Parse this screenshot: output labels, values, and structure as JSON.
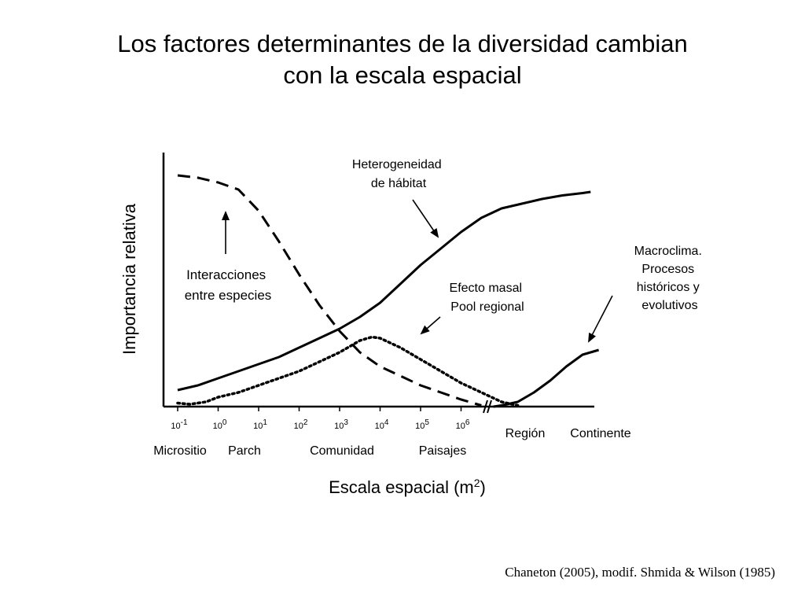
{
  "title": {
    "line1": "Los factores determinantes de la diversidad cambian",
    "line2": "con la escala espacial"
  },
  "citation": "Chaneton (2005), modif. Shmida & Wilson (1985)",
  "chart_data": {
    "type": "line",
    "ylabel": "Importancia relativa",
    "xlabel": {
      "text": "Escala espacial (m",
      "sup": "2",
      "close": ")"
    },
    "x_ticks": [
      {
        "base": "10",
        "exp": "-1"
      },
      {
        "base": "10",
        "exp": "0"
      },
      {
        "base": "10",
        "exp": "1"
      },
      {
        "base": "10",
        "exp": "2"
      },
      {
        "base": "10",
        "exp": "3"
      },
      {
        "base": "10",
        "exp": "4"
      },
      {
        "base": "10",
        "exp": "5"
      },
      {
        "base": "10",
        "exp": "6"
      }
    ],
    "scale_categories": [
      "Micrositio",
      "Parch",
      "Comunidad",
      "Paisajes",
      "Región",
      "Continente"
    ],
    "annotations": {
      "heterogeneidad": [
        "Heterogeneidad",
        "de hábitat"
      ],
      "interacciones": [
        "Interacciones",
        "entre especies"
      ],
      "efecto_masal": [
        "Efecto masal",
        "Pool regional"
      ],
      "macroclima": [
        "Macroclima.",
        "Procesos",
        "históricos y",
        "evolutivos"
      ]
    },
    "series": [
      {
        "style": "dashed",
        "x": [
          -1,
          -0.5,
          0,
          0.5,
          1,
          1.5,
          2,
          2.5,
          3,
          3.5,
          4,
          4.5,
          5,
          5.5,
          6,
          6.5
        ],
        "y": [
          0.98,
          0.97,
          0.95,
          0.92,
          0.83,
          0.7,
          0.56,
          0.43,
          0.32,
          0.23,
          0.17,
          0.13,
          0.09,
          0.06,
          0.03,
          0.005
        ]
      },
      {
        "style": "solid",
        "x": [
          -1,
          -0.5,
          0,
          0.5,
          1,
          1.5,
          2,
          2.5,
          3,
          3.5,
          4,
          4.5,
          5,
          5.5,
          6,
          6.5,
          7,
          7.5,
          8,
          8.5,
          9,
          9.2
        ],
        "y": [
          0.07,
          0.09,
          0.12,
          0.15,
          0.18,
          0.21,
          0.25,
          0.29,
          0.33,
          0.38,
          0.44,
          0.52,
          0.6,
          0.67,
          0.74,
          0.8,
          0.84,
          0.86,
          0.88,
          0.895,
          0.905,
          0.91
        ]
      },
      {
        "style": "dotted",
        "x": [
          -1,
          -0.7,
          -0.3,
          0,
          0.5,
          1,
          1.5,
          2,
          2.5,
          3,
          3.5,
          3.8,
          4,
          4.5,
          5,
          5.5,
          6,
          6.5,
          7,
          7.4
        ],
        "y": [
          0.015,
          0.01,
          0.02,
          0.04,
          0.06,
          0.09,
          0.12,
          0.15,
          0.19,
          0.23,
          0.28,
          0.295,
          0.29,
          0.25,
          0.2,
          0.15,
          0.1,
          0.06,
          0.02,
          0.005
        ]
      },
      {
        "style": "solid",
        "x": [
          6.8,
          7,
          7.4,
          7.8,
          8.2,
          8.6,
          9,
          9.4
        ],
        "y": [
          0.0,
          0.005,
          0.02,
          0.06,
          0.11,
          0.17,
          0.22,
          0.24
        ]
      }
    ]
  }
}
